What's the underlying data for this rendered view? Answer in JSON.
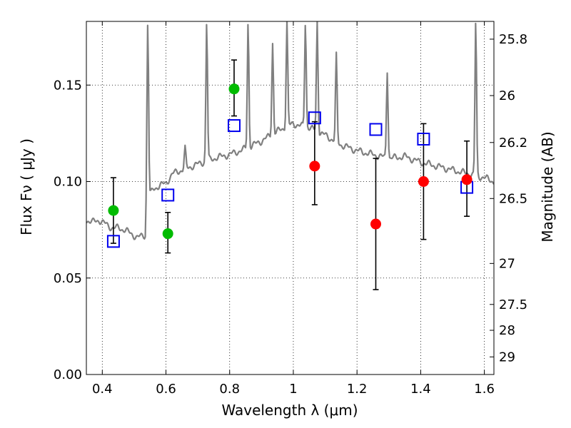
{
  "chart_data": {
    "type": "scatter",
    "xlabel": "Wavelength  λ (μm)",
    "ylabel": "Flux  Fν  ( μJy )",
    "y2label": "Magnitude (AB)",
    "xlim": [
      0.35,
      1.63
    ],
    "ylim": [
      0.0,
      0.183
    ],
    "x_ticks": [
      {
        "value": 0.4,
        "label": "0.4"
      },
      {
        "value": 0.6,
        "label": "0.6"
      },
      {
        "value": 0.8,
        "label": "0.8"
      },
      {
        "value": 1.0,
        "label": "1"
      },
      {
        "value": 1.2,
        "label": "1.2"
      },
      {
        "value": 1.4,
        "label": "1.4"
      },
      {
        "value": 1.6,
        "label": "1.6"
      }
    ],
    "y_ticks": [
      {
        "value": 0.0,
        "label": "0.00"
      },
      {
        "value": 0.05,
        "label": "0.05"
      },
      {
        "value": 0.1,
        "label": "0.10"
      },
      {
        "value": 0.15,
        "label": "0.15"
      }
    ],
    "y2_ticks": [
      {
        "value": 25.8,
        "label": "25.8"
      },
      {
        "value": 26.0,
        "label": "26"
      },
      {
        "value": 26.2,
        "label": "26.2"
      },
      {
        "value": 26.5,
        "label": "26.5"
      },
      {
        "value": 27.0,
        "label": "27"
      },
      {
        "value": 27.5,
        "label": "27.5"
      },
      {
        "value": 28.0,
        "label": "28"
      },
      {
        "value": 29.0,
        "label": "29"
      }
    ],
    "grid": true,
    "colors": {
      "template": "#808080",
      "green": "#00bb00",
      "red": "#ff0000",
      "model": "#0000ee",
      "errorbar": "#000000"
    },
    "series": [
      {
        "points": [
          {
            "x": 0.435,
            "y": 0.085,
            "yerr_low": 0.068,
            "yerr_high": 0.102
          },
          {
            "x": 0.606,
            "y": 0.073,
            "yerr_low": 0.063,
            "yerr_high": 0.084
          },
          {
            "x": 0.814,
            "y": 0.148,
            "yerr_low": 0.134,
            "yerr_high": 0.163
          }
        ]
      },
      {
        "points": [
          {
            "x": 1.067,
            "y": 0.108,
            "yerr_low": 0.088,
            "yerr_high": 0.131
          },
          {
            "x": 1.259,
            "y": 0.078,
            "yerr_low": 0.044,
            "yerr_high": 0.112
          },
          {
            "x": 1.409,
            "y": 0.1,
            "yerr_low": 0.07,
            "yerr_high": 0.13
          },
          {
            "x": 1.545,
            "y": 0.101,
            "yerr_low": 0.082,
            "yerr_high": 0.121
          }
        ]
      },
      {
        "points": [
          {
            "x": 0.435,
            "y": 0.069
          },
          {
            "x": 0.606,
            "y": 0.093
          },
          {
            "x": 0.814,
            "y": 0.129
          },
          {
            "x": 1.067,
            "y": 0.133
          },
          {
            "x": 1.259,
            "y": 0.127
          },
          {
            "x": 1.409,
            "y": 0.122
          },
          {
            "x": 1.545,
            "y": 0.097
          }
        ]
      },
      {
        "x": [
          0.35,
          0.37,
          0.39,
          0.41,
          0.43,
          0.45,
          0.47,
          0.49,
          0.51,
          0.53,
          0.535,
          0.54,
          0.545,
          0.55,
          0.56,
          0.58,
          0.6,
          0.62,
          0.65,
          0.7,
          0.75,
          0.8,
          0.85,
          0.9,
          0.95,
          1.0,
          1.02,
          1.05,
          1.1,
          1.15,
          1.2,
          1.25,
          1.3,
          1.35,
          1.4,
          1.45,
          1.5,
          1.55,
          1.6,
          1.63
        ],
        "y": [
          0.08,
          0.079,
          0.08,
          0.078,
          0.076,
          0.076,
          0.075,
          0.073,
          0.071,
          0.072,
          0.072,
          0.095,
          0.094,
          0.093,
          0.096,
          0.098,
          0.099,
          0.104,
          0.106,
          0.109,
          0.112,
          0.114,
          0.117,
          0.121,
          0.126,
          0.13,
          0.129,
          0.128,
          0.124,
          0.119,
          0.116,
          0.114,
          0.112,
          0.113,
          0.11,
          0.108,
          0.106,
          0.104,
          0.102,
          0.1
        ]
      }
    ],
    "emission_lines": [
      {
        "x": 0.543,
        "peak": 0.183
      },
      {
        "x": 0.728,
        "peak": 0.183
      },
      {
        "x": 0.858,
        "peak": 0.183
      },
      {
        "x": 0.98,
        "peak": 0.183
      },
      {
        "x": 1.038,
        "peak": 0.183
      },
      {
        "x": 1.075,
        "peak": 0.183
      },
      {
        "x": 1.135,
        "peak": 0.165
      },
      {
        "x": 1.573,
        "peak": 0.183
      },
      {
        "x": 0.66,
        "peak": 0.117
      },
      {
        "x": 0.935,
        "peak": 0.172
      },
      {
        "x": 1.295,
        "peak": 0.158
      }
    ]
  }
}
